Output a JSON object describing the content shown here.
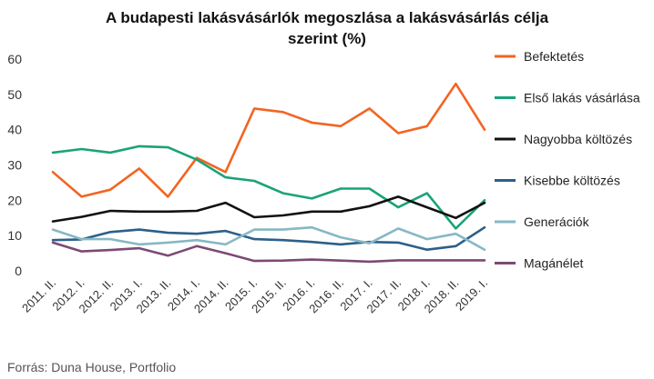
{
  "chart_data": {
    "type": "line",
    "title_lines": [
      "A budapesti lakásvásárlók megoszlása a lakásvásárlás célja",
      "szerint (%)"
    ],
    "xlabel": "",
    "ylabel": "",
    "ylim": [
      0,
      60
    ],
    "yticks": [
      0,
      10,
      20,
      30,
      40,
      50,
      60
    ],
    "grid": false,
    "legend_position": "right",
    "categories": [
      "2011. II.",
      "2012. I.",
      "2012. II.",
      "2013. I.",
      "2013. II.",
      "2014. I.",
      "2014. II.",
      "2015. I.",
      "2015. II.",
      "2016. I.",
      "2016. II.",
      "2017. I.",
      "2017. II.",
      "2018. I.",
      "2018. II.",
      "2019. I."
    ],
    "series": [
      {
        "name": "Befektetés",
        "color": "#f26522",
        "values": [
          28,
          21,
          23,
          29,
          21,
          32,
          28,
          46,
          45,
          42,
          41,
          46,
          39,
          41,
          53,
          40
        ]
      },
      {
        "name": "Első lakás vásárlása",
        "color": "#1aa37a",
        "values": [
          33.5,
          34.5,
          33.5,
          35.3,
          35,
          31.5,
          26.5,
          25.5,
          22,
          20.5,
          23.3,
          23.3,
          18,
          22,
          12,
          20
        ]
      },
      {
        "name": "Nagyobba költözés",
        "color": "#111111",
        "values": [
          14,
          15.3,
          17,
          16.8,
          16.8,
          17,
          19.3,
          15.2,
          15.7,
          16.8,
          16.8,
          18.3,
          21,
          18,
          15,
          19.3
        ]
      },
      {
        "name": "Kisebbe költözés",
        "color": "#2c5f8a",
        "values": [
          8.7,
          8.9,
          11,
          11.7,
          10.8,
          10.5,
          11.3,
          9,
          8.7,
          8.2,
          7.5,
          8.2,
          8,
          6,
          7,
          12.3
        ]
      },
      {
        "name": "Generációk",
        "color": "#86b8c4",
        "values": [
          11.7,
          9,
          9,
          7.5,
          8,
          8.7,
          7.5,
          11.7,
          11.7,
          12.3,
          9.5,
          7.8,
          12,
          9,
          10.5,
          6
        ]
      },
      {
        "name": "Magánélet",
        "color": "#7c4a74",
        "values": [
          8,
          5.5,
          5.9,
          6.4,
          4.3,
          7,
          5,
          2.8,
          2.9,
          3.2,
          2.9,
          2.6,
          3,
          3,
          3,
          3
        ]
      }
    ]
  },
  "source": "Forrás: Duna House, Portfolio"
}
